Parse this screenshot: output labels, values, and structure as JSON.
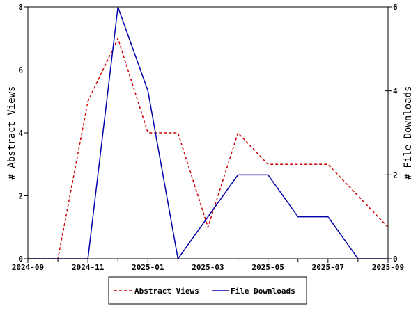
{
  "chart_data": {
    "type": "line",
    "x_ticks": [
      "2024-09",
      "2024-11",
      "2025-01",
      "2025-03",
      "2025-05",
      "2025-07",
      "2025-09"
    ],
    "x": [
      "2024-09",
      "2024-10",
      "2024-11",
      "2024-12",
      "2025-01",
      "2025-02",
      "2025-03",
      "2025-04",
      "2025-05",
      "2025-06",
      "2025-07",
      "2025-08",
      "2025-09"
    ],
    "left_axis": {
      "label": "# Abstract Views",
      "ylim": [
        0,
        8
      ],
      "ticks": [
        0,
        2,
        4,
        6,
        8
      ]
    },
    "right_axis": {
      "label": "# File Downloads",
      "ylim": [
        0,
        6
      ],
      "ticks": [
        0,
        2,
        4,
        6
      ]
    },
    "series": [
      {
        "name": "Abstract Views",
        "axis": "left",
        "color": "#cc0000",
        "style": "dashed",
        "values": [
          0,
          0,
          5,
          7,
          4,
          4,
          1,
          4,
          3,
          3,
          3,
          2,
          1
        ]
      },
      {
        "name": "File Downloads",
        "axis": "right",
        "color": "#0000aa",
        "style": "solid",
        "values": [
          0,
          0,
          0,
          6,
          4,
          0,
          1,
          2,
          2,
          1,
          1,
          0,
          0
        ]
      }
    ],
    "grid": false,
    "legend_position": "bottom"
  }
}
